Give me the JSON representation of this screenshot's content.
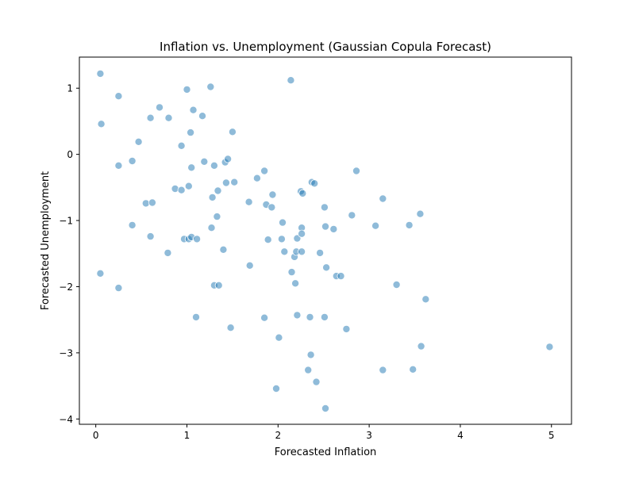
{
  "chart_data": {
    "type": "scatter",
    "title": "Inflation vs. Unemployment (Gaussian Copula Forecast)",
    "xlabel": "Forecasted Inflation",
    "ylabel": "Forecasted Unemployment",
    "xlim": [
      -0.18,
      5.22
    ],
    "ylim": [
      -4.08,
      1.47
    ],
    "xticks": [
      0,
      1,
      2,
      3,
      4,
      5
    ],
    "xtick_labels": [
      "0",
      "1",
      "2",
      "3",
      "4",
      "5"
    ],
    "yticks": [
      1,
      0,
      -1,
      -2,
      -3,
      -4
    ],
    "ytick_labels": [
      "1",
      "0",
      "−1",
      "−2",
      "−3",
      "−4"
    ],
    "grid": false,
    "marker_color": "#1f77b4",
    "points": [
      {
        "x": 0.05,
        "y": 1.22
      },
      {
        "x": 0.06,
        "y": 0.46
      },
      {
        "x": 0.25,
        "y": 0.88
      },
      {
        "x": 0.25,
        "y": -0.17
      },
      {
        "x": 0.05,
        "y": -1.8
      },
      {
        "x": 0.25,
        "y": -2.02
      },
      {
        "x": 0.4,
        "y": -0.1
      },
      {
        "x": 0.47,
        "y": 0.19
      },
      {
        "x": 0.4,
        "y": -1.07
      },
      {
        "x": 0.55,
        "y": -0.74
      },
      {
        "x": 0.6,
        "y": 0.55
      },
      {
        "x": 0.6,
        "y": -1.24
      },
      {
        "x": 0.62,
        "y": -0.73
      },
      {
        "x": 0.7,
        "y": 0.71
      },
      {
        "x": 0.8,
        "y": 0.55
      },
      {
        "x": 0.79,
        "y": -1.49
      },
      {
        "x": 0.87,
        "y": -0.52
      },
      {
        "x": 0.94,
        "y": 0.13
      },
      {
        "x": 0.94,
        "y": -0.54
      },
      {
        "x": 0.97,
        "y": -1.28
      },
      {
        "x": 1.0,
        "y": 0.98
      },
      {
        "x": 1.02,
        "y": -0.48
      },
      {
        "x": 1.02,
        "y": -1.28
      },
      {
        "x": 1.04,
        "y": 0.33
      },
      {
        "x": 1.05,
        "y": -0.2
      },
      {
        "x": 1.05,
        "y": -1.25
      },
      {
        "x": 1.07,
        "y": 0.67
      },
      {
        "x": 1.1,
        "y": -2.46
      },
      {
        "x": 1.11,
        "y": -1.28
      },
      {
        "x": 1.17,
        "y": 0.58
      },
      {
        "x": 1.19,
        "y": -0.11
      },
      {
        "x": 1.26,
        "y": 1.02
      },
      {
        "x": 1.27,
        "y": -1.11
      },
      {
        "x": 1.28,
        "y": -0.65
      },
      {
        "x": 1.3,
        "y": -0.17
      },
      {
        "x": 1.3,
        "y": -1.98
      },
      {
        "x": 1.33,
        "y": -0.94
      },
      {
        "x": 1.34,
        "y": -0.55
      },
      {
        "x": 1.35,
        "y": -1.98
      },
      {
        "x": 1.4,
        "y": -1.44
      },
      {
        "x": 1.42,
        "y": -0.12
      },
      {
        "x": 1.43,
        "y": -0.43
      },
      {
        "x": 1.45,
        "y": -0.07
      },
      {
        "x": 1.48,
        "y": -2.62
      },
      {
        "x": 1.5,
        "y": 0.34
      },
      {
        "x": 1.52,
        "y": -0.42
      },
      {
        "x": 1.68,
        "y": -0.72
      },
      {
        "x": 1.69,
        "y": -1.68
      },
      {
        "x": 1.77,
        "y": -0.36
      },
      {
        "x": 1.85,
        "y": -0.25
      },
      {
        "x": 1.85,
        "y": -2.47
      },
      {
        "x": 1.87,
        "y": -0.76
      },
      {
        "x": 1.89,
        "y": -1.29
      },
      {
        "x": 1.93,
        "y": -0.8
      },
      {
        "x": 1.94,
        "y": -0.61
      },
      {
        "x": 1.98,
        "y": -3.54
      },
      {
        "x": 2.01,
        "y": -2.77
      },
      {
        "x": 2.04,
        "y": -1.28
      },
      {
        "x": 2.05,
        "y": -1.03
      },
      {
        "x": 2.07,
        "y": -1.47
      },
      {
        "x": 2.14,
        "y": 1.12
      },
      {
        "x": 2.15,
        "y": -1.78
      },
      {
        "x": 2.18,
        "y": -1.55
      },
      {
        "x": 2.19,
        "y": -1.95
      },
      {
        "x": 2.2,
        "y": -1.47
      },
      {
        "x": 2.21,
        "y": -2.43
      },
      {
        "x": 2.21,
        "y": -1.27
      },
      {
        "x": 2.25,
        "y": -0.56
      },
      {
        "x": 2.26,
        "y": -1.11
      },
      {
        "x": 2.26,
        "y": -1.2
      },
      {
        "x": 2.26,
        "y": -1.47
      },
      {
        "x": 2.27,
        "y": -0.59
      },
      {
        "x": 2.33,
        "y": -3.26
      },
      {
        "x": 2.35,
        "y": -2.46
      },
      {
        "x": 2.36,
        "y": -3.03
      },
      {
        "x": 2.37,
        "y": -0.42
      },
      {
        "x": 2.4,
        "y": -0.44
      },
      {
        "x": 2.42,
        "y": -3.44
      },
      {
        "x": 2.46,
        "y": -1.49
      },
      {
        "x": 2.51,
        "y": -2.46
      },
      {
        "x": 2.51,
        "y": -0.8
      },
      {
        "x": 2.52,
        "y": -1.09
      },
      {
        "x": 2.52,
        "y": -3.84
      },
      {
        "x": 2.53,
        "y": -1.71
      },
      {
        "x": 2.61,
        "y": -1.13
      },
      {
        "x": 2.64,
        "y": -1.84
      },
      {
        "x": 2.69,
        "y": -1.84
      },
      {
        "x": 2.75,
        "y": -2.64
      },
      {
        "x": 2.81,
        "y": -0.92
      },
      {
        "x": 2.86,
        "y": -0.25
      },
      {
        "x": 3.07,
        "y": -1.08
      },
      {
        "x": 3.15,
        "y": -0.67
      },
      {
        "x": 3.15,
        "y": -3.26
      },
      {
        "x": 3.3,
        "y": -1.97
      },
      {
        "x": 3.44,
        "y": -1.07
      },
      {
        "x": 3.48,
        "y": -3.25
      },
      {
        "x": 3.56,
        "y": -0.9
      },
      {
        "x": 3.57,
        "y": -2.9
      },
      {
        "x": 3.62,
        "y": -2.19
      },
      {
        "x": 4.98,
        "y": -2.91
      }
    ]
  }
}
